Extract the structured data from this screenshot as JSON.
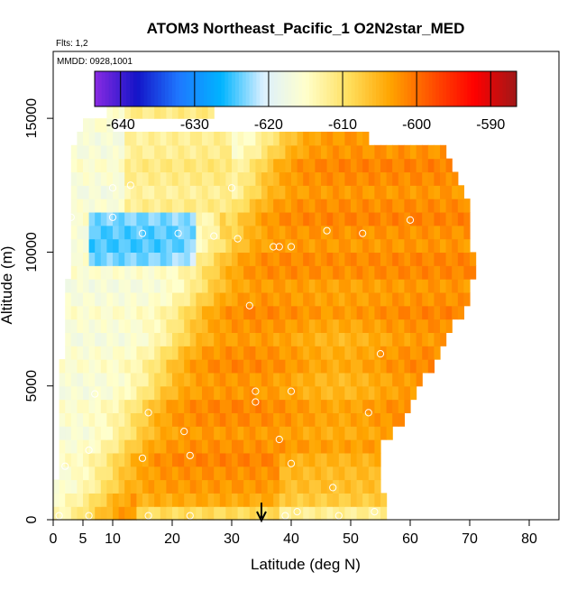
{
  "chart_data": {
    "type": "heatmap",
    "title": "ATOM3 Northeast_Pacific_1 O2N2star_MED",
    "subtitle_flights": "Flts: 1,2",
    "subtitle_dates": "MMDD: 0928,1001",
    "xlabel": "Latitude (deg N)",
    "ylabel": "Altitude (m)",
    "xlim": [
      0,
      85
    ],
    "ylim": [
      0,
      17500
    ],
    "x_ticks": [
      0,
      5,
      10,
      20,
      30,
      40,
      50,
      60,
      70,
      80
    ],
    "x_tick_labels": [
      "0",
      "5",
      "10",
      "20",
      "30",
      "40",
      "50",
      "60",
      "70",
      "80"
    ],
    "y_ticks": [
      0,
      5000,
      10000,
      15000
    ],
    "y_tick_labels": [
      "0",
      "5000",
      "10000",
      "15000"
    ],
    "colorbar": {
      "min": -643.5,
      "max": -586.5,
      "ticks": [
        -640,
        -630,
        -620,
        -610,
        -600,
        -590
      ],
      "tick_labels": [
        "-640",
        "-630",
        "-620",
        "-610",
        "-600",
        "-590"
      ],
      "colors": [
        "#8a2be2",
        "#1414c8",
        "#1e78ff",
        "#00b4ff",
        "#dcf0ff",
        "#ffffcc",
        "#ffe060",
        "#ffa500",
        "#ff5000",
        "#ff0000",
        "#a01818"
      ]
    },
    "marker_latitude": 35,
    "grid": {
      "lat_start": 0,
      "lat_step": 1,
      "alt_start": 0,
      "alt_step": 500,
      "extent": [
        [
          0,
          56
        ],
        [
          0,
          56
        ],
        [
          0,
          55
        ],
        [
          1,
          55
        ],
        [
          1,
          55
        ],
        [
          1,
          55
        ],
        [
          1,
          57
        ],
        [
          1,
          59
        ],
        [
          1,
          60
        ],
        [
          1,
          61
        ],
        [
          1,
          62
        ],
        [
          1,
          64
        ],
        [
          2,
          65
        ],
        [
          2,
          66
        ],
        [
          2,
          67
        ],
        [
          2,
          69
        ],
        [
          2,
          70
        ],
        [
          2,
          70
        ],
        [
          3,
          71
        ],
        [
          3,
          71
        ],
        [
          3,
          70
        ],
        [
          3,
          70
        ],
        [
          3,
          70
        ],
        [
          3,
          70
        ],
        [
          3,
          69
        ],
        [
          3,
          68
        ],
        [
          3,
          67
        ],
        [
          3,
          66
        ],
        [
          4,
          53
        ],
        [
          5,
          10
        ],
        [
          9,
          27
        ]
      ]
    },
    "points": [
      [
        1,
        150
      ],
      [
        6,
        150
      ],
      [
        16,
        150
      ],
      [
        23,
        150
      ],
      [
        39,
        150
      ],
      [
        41,
        300
      ],
      [
        48,
        150
      ],
      [
        54,
        300
      ],
      [
        2,
        2000
      ],
      [
        6,
        2600
      ],
      [
        15,
        2300
      ],
      [
        23,
        2400
      ],
      [
        38,
        3000
      ],
      [
        40,
        2100
      ],
      [
        47,
        1200
      ],
      [
        7,
        4700
      ],
      [
        16,
        4000
      ],
      [
        22,
        3300
      ],
      [
        34,
        4800
      ],
      [
        34,
        4400
      ],
      [
        40,
        4800
      ],
      [
        53,
        4000
      ],
      [
        55,
        6200
      ],
      [
        33,
        8000
      ],
      [
        0,
        9200
      ],
      [
        15,
        10700
      ],
      [
        21,
        10700
      ],
      [
        27,
        10600
      ],
      [
        31,
        10500
      ],
      [
        37,
        10200
      ],
      [
        38,
        10200
      ],
      [
        40,
        10200
      ],
      [
        46,
        10800
      ],
      [
        52,
        10700
      ],
      [
        60,
        11200
      ],
      [
        3,
        11300
      ],
      [
        10,
        11300
      ],
      [
        10,
        12400
      ],
      [
        13,
        12500
      ],
      [
        30,
        12400
      ]
    ]
  }
}
